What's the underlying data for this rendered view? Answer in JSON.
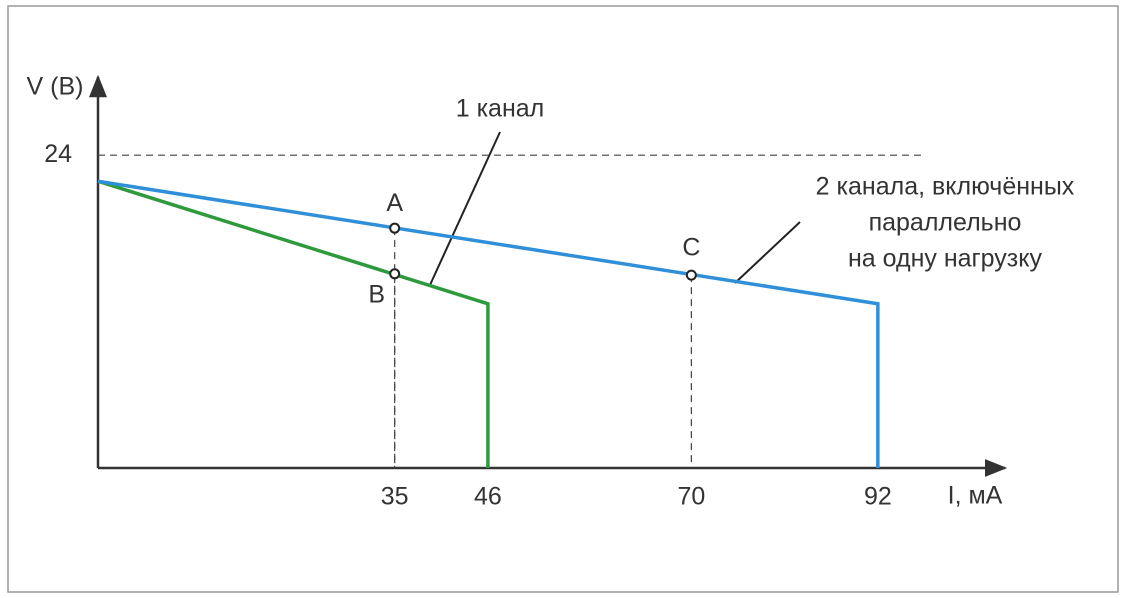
{
  "chart_data": {
    "type": "line",
    "y_label": "V (B)",
    "x_label": "I, мА",
    "xlim": [
      0,
      107
    ],
    "ylim": [
      0,
      30
    ],
    "xticks": [
      35,
      46,
      70,
      92
    ],
    "yticks": [
      24
    ],
    "series": [
      {
        "name": "1 канал",
        "color": "#2e9a3c",
        "x": [
          0,
          46,
          46
        ],
        "values": [
          22,
          12.6,
          0
        ]
      },
      {
        "name": "2 канала, включённых параллельно на одну нагрузку",
        "color": "#2f8fd8",
        "x": [
          0,
          92,
          92
        ],
        "values": [
          22,
          12.6,
          0
        ]
      }
    ],
    "points": [
      {
        "label": "A",
        "x": 35,
        "y": 18.4
      },
      {
        "label": "B",
        "x": 35,
        "y": 14.9
      },
      {
        "label": "C",
        "x": 70,
        "y": 14.8
      }
    ],
    "annotations": [
      {
        "lines": [
          "1 канал"
        ]
      },
      {
        "lines": [
          "2 канала, включённых",
          "параллельно",
          "на одну нагрузку"
        ]
      }
    ]
  }
}
